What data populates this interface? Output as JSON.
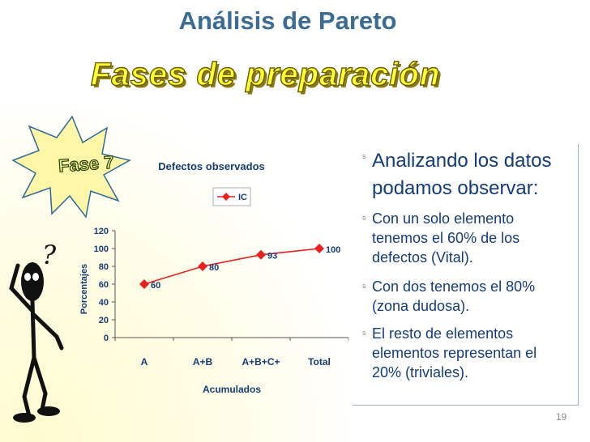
{
  "slide": {
    "title": "Análisis de Pareto",
    "subtitle": "Fases de preparación",
    "phase_label": "Fase 7",
    "page_number": "19"
  },
  "bullets": [
    "Analizando los datos podamos observar:",
    "Con un solo elemento tenemos el 60% de los defectos (Vital).",
    "Con dos tenemos el 80% (zona dudosa).",
    "El resto de elementos elementos representan el 20% (triviales)."
  ],
  "colors": {
    "title": "#3a6c96",
    "subtitle": "#ffff33",
    "series": "#e82020",
    "text": "#143c7a"
  },
  "chart_data": {
    "type": "line",
    "title": "Defectos observados",
    "xlabel": "Acumulados",
    "ylabel": "Porcentajes",
    "categories": [
      "A",
      "A+B",
      "A+B+C+",
      "Total"
    ],
    "series": [
      {
        "name": "IC",
        "values": [
          60,
          80,
          93,
          100
        ]
      }
    ],
    "ylim": [
      0,
      120
    ],
    "yticks": [
      0,
      20,
      40,
      60,
      80,
      100,
      120
    ],
    "grid": false,
    "legend": "top",
    "data_labels": true
  }
}
